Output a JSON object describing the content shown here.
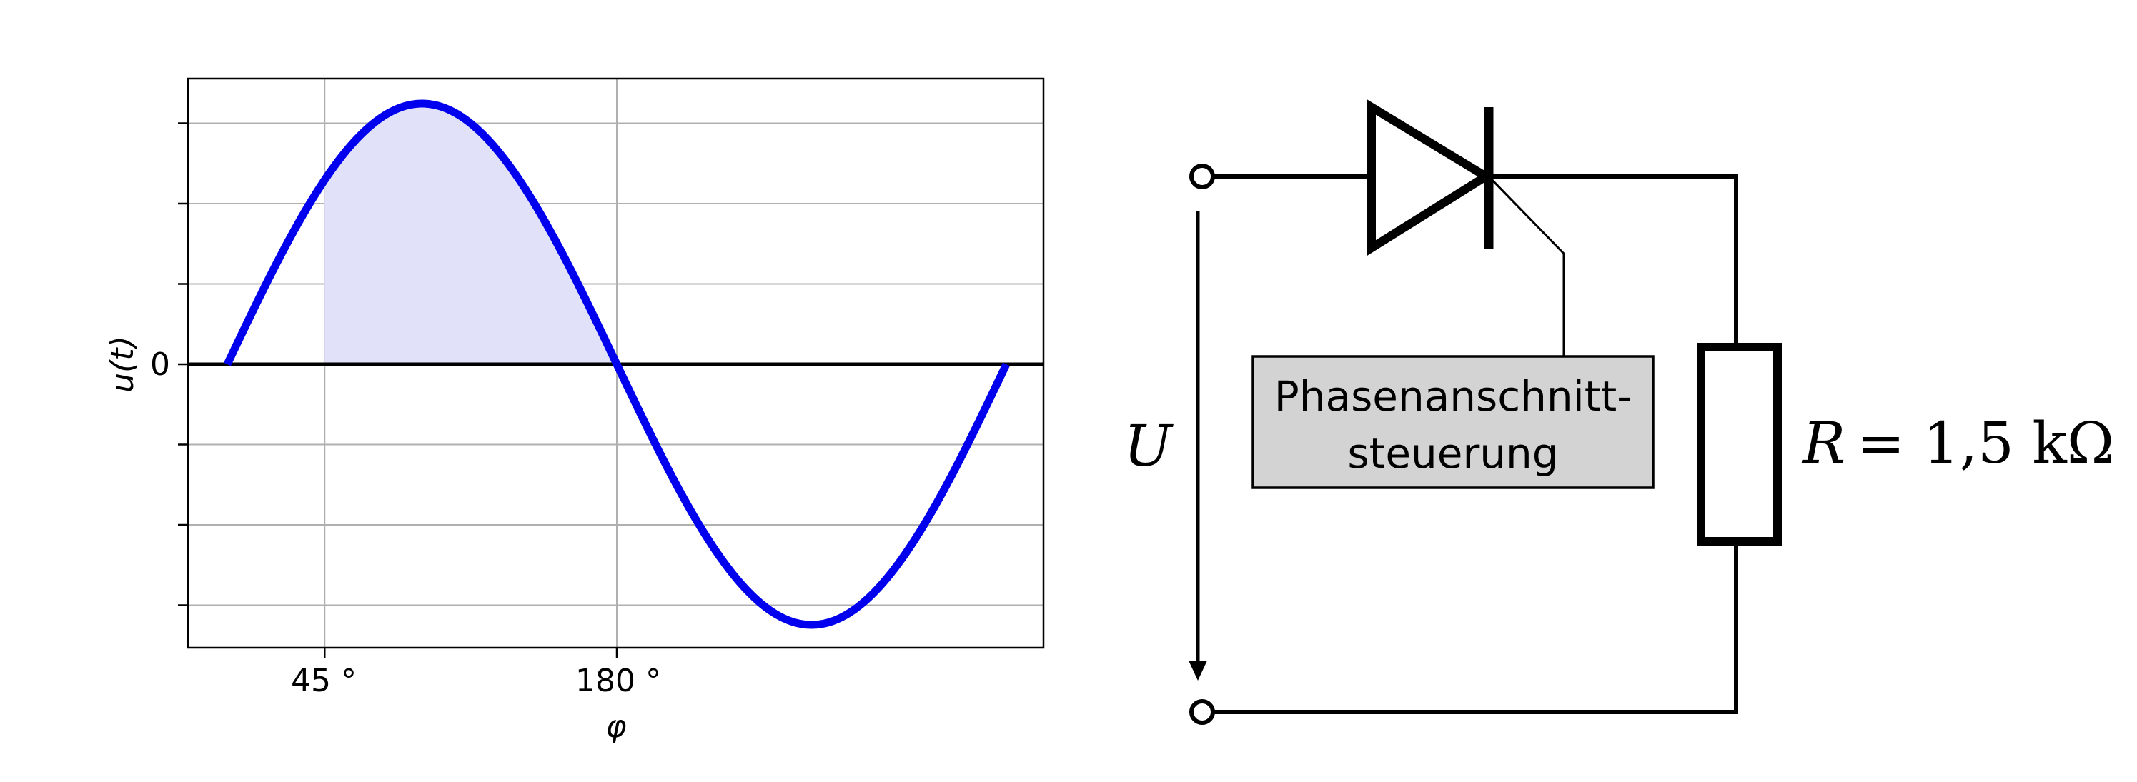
{
  "chart_data": {
    "type": "line",
    "function": "sine",
    "x_range_deg": [
      0,
      360
    ],
    "xlabel": "φ",
    "ylabel": "u(t)",
    "x_ticks": [
      {
        "value": 45,
        "label": "45 °"
      },
      {
        "value": 180,
        "label": "180 °"
      }
    ],
    "y_ticks": [
      {
        "value": 0,
        "label": "0"
      }
    ],
    "shaded_interval_deg": [
      45,
      180
    ],
    "grid": true,
    "colors": {
      "curve": "#0000ee",
      "fill": "#e1e1f9",
      "grid": "#b0b0b0",
      "zero_line": "#000000"
    }
  },
  "circuit": {
    "voltage_label": "U",
    "control_box": {
      "line1": "Phasenanschnitt-",
      "line2": "steuerung"
    },
    "resistor_label": {
      "symbol": "R",
      "equals": "= 1,5 kΩ"
    },
    "colors": {
      "box_fill": "#d3d3d3",
      "wire": "#000000"
    }
  }
}
